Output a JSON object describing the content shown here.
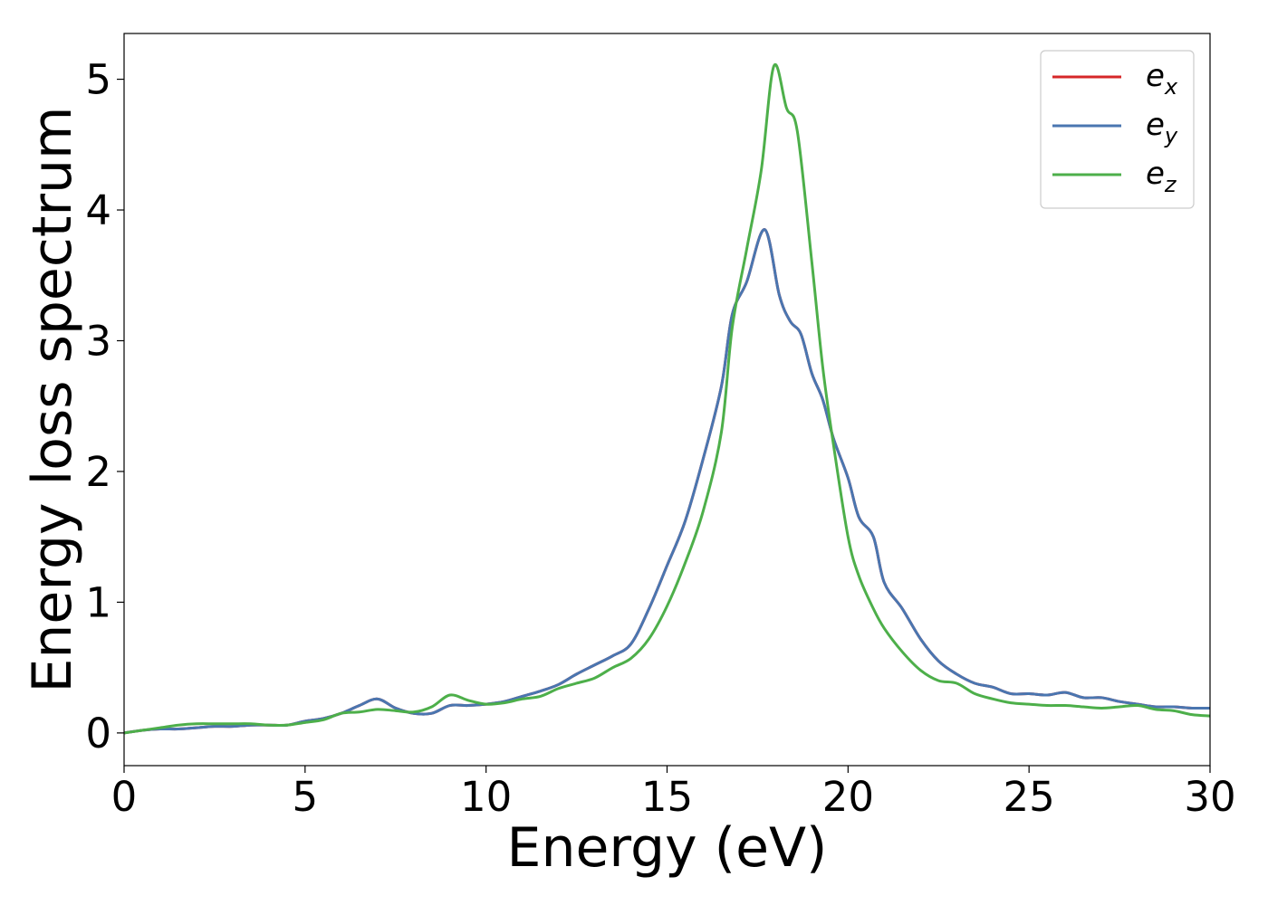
{
  "chart_data": {
    "type": "line",
    "title": "",
    "xlabel": "Energy (eV)",
    "ylabel": "Energy loss spectrum",
    "xlim": [
      0,
      30
    ],
    "ylim": [
      -0.25,
      5.35
    ],
    "xticks": [
      0,
      5,
      10,
      15,
      20,
      25,
      30
    ],
    "yticks": [
      0,
      1,
      2,
      3,
      4,
      5
    ],
    "xtick_labels": [
      "0",
      "5",
      "10",
      "15",
      "20",
      "25",
      "30"
    ],
    "ytick_labels": [
      "0",
      "1",
      "2",
      "3",
      "4",
      "5"
    ],
    "grid": false,
    "legend_position": "top-right",
    "series": [
      {
        "name": "e_x",
        "legend_base": "e",
        "legend_sub": "x",
        "color": "#d62728",
        "x": [
          0,
          0.5,
          1,
          1.5,
          2,
          2.5,
          3,
          3.5,
          4,
          4.5,
          5,
          5.5,
          6,
          6.5,
          7,
          7.5,
          8,
          8.5,
          9,
          9.5,
          10,
          10.5,
          11,
          11.5,
          12,
          12.5,
          13,
          13.5,
          14,
          14.5,
          15,
          15.5,
          16,
          16.5,
          16.8,
          17.2,
          17.7,
          18.1,
          18.4,
          18.7,
          19,
          19.3,
          19.6,
          20,
          20.3,
          20.7,
          21,
          21.5,
          22,
          22.5,
          23,
          23.5,
          24,
          24.5,
          25,
          25.5,
          26,
          26.5,
          27,
          27.5,
          28,
          28.5,
          29,
          29.5,
          30
        ],
        "values": [
          0.0,
          0.02,
          0.03,
          0.03,
          0.04,
          0.05,
          0.05,
          0.06,
          0.06,
          0.06,
          0.09,
          0.11,
          0.15,
          0.21,
          0.26,
          0.19,
          0.15,
          0.15,
          0.21,
          0.21,
          0.22,
          0.24,
          0.28,
          0.32,
          0.37,
          0.45,
          0.52,
          0.59,
          0.68,
          0.95,
          1.28,
          1.62,
          2.1,
          2.65,
          3.2,
          3.45,
          3.85,
          3.35,
          3.15,
          3.05,
          2.75,
          2.55,
          2.25,
          1.95,
          1.65,
          1.5,
          1.15,
          0.95,
          0.72,
          0.55,
          0.45,
          0.38,
          0.35,
          0.3,
          0.3,
          0.29,
          0.31,
          0.27,
          0.27,
          0.24,
          0.22,
          0.2,
          0.2,
          0.19,
          0.19
        ]
      },
      {
        "name": "e_y",
        "legend_base": "e",
        "legend_sub": "y",
        "color": "#4a76b0",
        "x": [
          0,
          0.5,
          1,
          1.5,
          2,
          2.5,
          3,
          3.5,
          4,
          4.5,
          5,
          5.5,
          6,
          6.5,
          7,
          7.5,
          8,
          8.5,
          9,
          9.5,
          10,
          10.5,
          11,
          11.5,
          12,
          12.5,
          13,
          13.5,
          14,
          14.5,
          15,
          15.5,
          16,
          16.5,
          16.8,
          17.2,
          17.7,
          18.1,
          18.4,
          18.7,
          19,
          19.3,
          19.6,
          20,
          20.3,
          20.7,
          21,
          21.5,
          22,
          22.5,
          23,
          23.5,
          24,
          24.5,
          25,
          25.5,
          26,
          26.5,
          27,
          27.5,
          28,
          28.5,
          29,
          29.5,
          30
        ],
        "values": [
          0.0,
          0.02,
          0.03,
          0.03,
          0.04,
          0.05,
          0.05,
          0.06,
          0.06,
          0.06,
          0.09,
          0.11,
          0.15,
          0.21,
          0.26,
          0.19,
          0.15,
          0.15,
          0.21,
          0.21,
          0.22,
          0.24,
          0.28,
          0.32,
          0.37,
          0.45,
          0.52,
          0.59,
          0.68,
          0.95,
          1.28,
          1.62,
          2.1,
          2.65,
          3.2,
          3.45,
          3.85,
          3.35,
          3.15,
          3.05,
          2.75,
          2.55,
          2.25,
          1.95,
          1.65,
          1.5,
          1.15,
          0.95,
          0.72,
          0.55,
          0.45,
          0.38,
          0.35,
          0.3,
          0.3,
          0.29,
          0.31,
          0.27,
          0.27,
          0.24,
          0.22,
          0.2,
          0.2,
          0.19,
          0.19
        ]
      },
      {
        "name": "e_z",
        "legend_base": "e",
        "legend_sub": "z",
        "color": "#4daf4a",
        "x": [
          0,
          0.5,
          1,
          1.5,
          2,
          2.5,
          3,
          3.5,
          4,
          4.5,
          5,
          5.5,
          6,
          6.5,
          7,
          7.5,
          8,
          8.5,
          9,
          9.5,
          10,
          10.5,
          11,
          11.5,
          12,
          12.5,
          13,
          13.5,
          14,
          14.5,
          15,
          15.5,
          16,
          16.5,
          16.8,
          17.2,
          17.6,
          17.95,
          18.3,
          18.6,
          19,
          19.3,
          19.6,
          20,
          20.3,
          20.7,
          21,
          21.5,
          22,
          22.5,
          23,
          23.5,
          24,
          24.5,
          25,
          25.5,
          26,
          26.5,
          27,
          27.5,
          28,
          28.5,
          29,
          29.5,
          30
        ],
        "values": [
          0.0,
          0.02,
          0.04,
          0.06,
          0.07,
          0.07,
          0.07,
          0.07,
          0.06,
          0.06,
          0.08,
          0.1,
          0.15,
          0.16,
          0.18,
          0.17,
          0.16,
          0.2,
          0.29,
          0.25,
          0.22,
          0.23,
          0.26,
          0.28,
          0.34,
          0.38,
          0.42,
          0.5,
          0.57,
          0.72,
          0.97,
          1.3,
          1.7,
          2.3,
          3.1,
          3.7,
          4.3,
          5.1,
          4.78,
          4.6,
          3.6,
          2.8,
          2.2,
          1.5,
          1.2,
          0.95,
          0.8,
          0.62,
          0.48,
          0.4,
          0.38,
          0.3,
          0.26,
          0.23,
          0.22,
          0.21,
          0.21,
          0.2,
          0.19,
          0.2,
          0.21,
          0.18,
          0.17,
          0.14,
          0.13
        ]
      }
    ]
  }
}
